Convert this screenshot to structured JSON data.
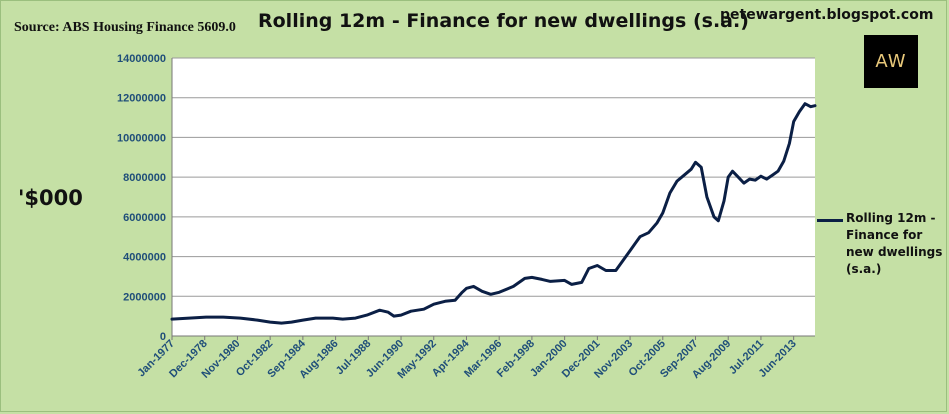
{
  "source": "Source: ABS Housing Finance 5609.0",
  "blog": "petewargent.blogspot.com",
  "logo_text": "AW",
  "chart_data": {
    "type": "line",
    "title": "Rolling 12m - Finance for new dwellings (s.a.)",
    "ylabel": "'$000",
    "xlabel": "",
    "ylim": [
      0,
      14000000
    ],
    "yticks": [
      "0",
      "2000000",
      "4000000",
      "6000000",
      "8000000",
      "10000000",
      "12000000",
      "14000000"
    ],
    "grid": "horizontal",
    "legend_position": "right",
    "line_color": "#0b1f45",
    "x_tick_labels": [
      "Jan-1977",
      "Dec-1978",
      "Nov-1980",
      "Oct-1982",
      "Sep-1984",
      "Aug-1986",
      "Jul-1988",
      "Jun-1990",
      "May-1992",
      "Apr-1994",
      "Mar-1996",
      "Feb-1998",
      "Jan-2000",
      "Dec-2001",
      "Nov-2003",
      "Oct-2005",
      "Sep-2007",
      "Aug-2009",
      "Jul-2011",
      "Jun-2013"
    ],
    "series": [
      {
        "name": "Rolling 12m - Finance for new dwellings (s.a.)",
        "points": [
          [
            "1977-01",
            850000
          ],
          [
            "1978-01",
            900000
          ],
          [
            "1979-01",
            950000
          ],
          [
            "1980-01",
            950000
          ],
          [
            "1981-01",
            900000
          ],
          [
            "1982-01",
            800000
          ],
          [
            "1982-10",
            700000
          ],
          [
            "1983-06",
            650000
          ],
          [
            "1984-01",
            700000
          ],
          [
            "1984-09",
            800000
          ],
          [
            "1985-06",
            900000
          ],
          [
            "1986-06",
            900000
          ],
          [
            "1987-01",
            850000
          ],
          [
            "1987-10",
            900000
          ],
          [
            "1988-06",
            1050000
          ],
          [
            "1989-03",
            1300000
          ],
          [
            "1989-09",
            1200000
          ],
          [
            "1990-01",
            1000000
          ],
          [
            "1990-06",
            1050000
          ],
          [
            "1991-01",
            1250000
          ],
          [
            "1991-10",
            1350000
          ],
          [
            "1992-05",
            1600000
          ],
          [
            "1993-01",
            1750000
          ],
          [
            "1993-08",
            1800000
          ],
          [
            "1994-01",
            2200000
          ],
          [
            "1994-04",
            2400000
          ],
          [
            "1994-09",
            2500000
          ],
          [
            "1995-03",
            2250000
          ],
          [
            "1995-09",
            2100000
          ],
          [
            "1996-03",
            2200000
          ],
          [
            "1997-01",
            2500000
          ],
          [
            "1997-09",
            2900000
          ],
          [
            "1998-02",
            2950000
          ],
          [
            "1998-09",
            2850000
          ],
          [
            "1999-03",
            2750000
          ],
          [
            "2000-01",
            2800000
          ],
          [
            "2000-06",
            2600000
          ],
          [
            "2001-01",
            2700000
          ],
          [
            "2001-06",
            3400000
          ],
          [
            "2001-12",
            3550000
          ],
          [
            "2002-06",
            3300000
          ],
          [
            "2003-01",
            3300000
          ],
          [
            "2003-06",
            3800000
          ],
          [
            "2003-11",
            4300000
          ],
          [
            "2004-06",
            5000000
          ],
          [
            "2004-12",
            5200000
          ],
          [
            "2005-06",
            5700000
          ],
          [
            "2005-10",
            6200000
          ],
          [
            "2006-03",
            7200000
          ],
          [
            "2006-08",
            7800000
          ],
          [
            "2007-01",
            8100000
          ],
          [
            "2007-06",
            8400000
          ],
          [
            "2007-09",
            8750000
          ],
          [
            "2008-01",
            8500000
          ],
          [
            "2008-05",
            7000000
          ],
          [
            "2008-10",
            6000000
          ],
          [
            "2009-01",
            5800000
          ],
          [
            "2009-05",
            6800000
          ],
          [
            "2009-08",
            8000000
          ],
          [
            "2009-11",
            8300000
          ],
          [
            "2010-03",
            8000000
          ],
          [
            "2010-07",
            7700000
          ],
          [
            "2010-11",
            7900000
          ],
          [
            "2011-03",
            7850000
          ],
          [
            "2011-07",
            8050000
          ],
          [
            "2011-11",
            7900000
          ],
          [
            "2012-03",
            8100000
          ],
          [
            "2012-07",
            8300000
          ],
          [
            "2012-11",
            8800000
          ],
          [
            "2013-03",
            9700000
          ],
          [
            "2013-06",
            10800000
          ],
          [
            "2013-10",
            11300000
          ],
          [
            "2014-02",
            11700000
          ],
          [
            "2014-06",
            11550000
          ],
          [
            "2014-09",
            11600000
          ]
        ]
      }
    ]
  }
}
